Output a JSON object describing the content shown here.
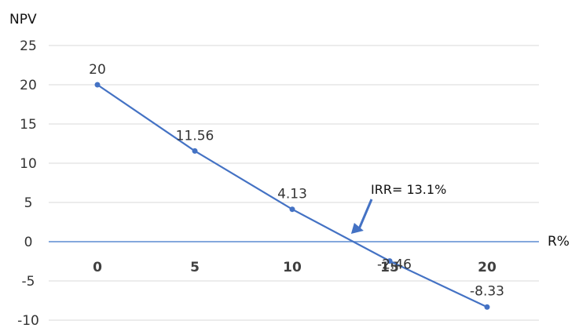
{
  "chart_data": {
    "type": "line",
    "title": "",
    "xlabel": "R%",
    "ylabel": "NPV",
    "x": [
      0,
      5,
      10,
      15,
      20
    ],
    "xtick_labels": [
      "0",
      "5",
      "10",
      "15",
      "20"
    ],
    "yticks": [
      25,
      20,
      15,
      10,
      5,
      0,
      -5,
      -10
    ],
    "ytick_labels": [
      "25",
      "20",
      "15",
      "10",
      "5",
      "0",
      "-5",
      "-10"
    ],
    "ylim": [
      -10,
      25
    ],
    "grid": true,
    "series": [
      {
        "values": [
          20,
          11.56,
          4.13,
          -2.46,
          -8.33
        ],
        "data_labels": [
          "20",
          "11.56",
          "4.13",
          "-2.46",
          "-8.33"
        ],
        "color": "#4472c4"
      }
    ],
    "annotations": [
      {
        "text": "IRR= 13.1%",
        "x": 13.1,
        "y": 0
      }
    ]
  }
}
